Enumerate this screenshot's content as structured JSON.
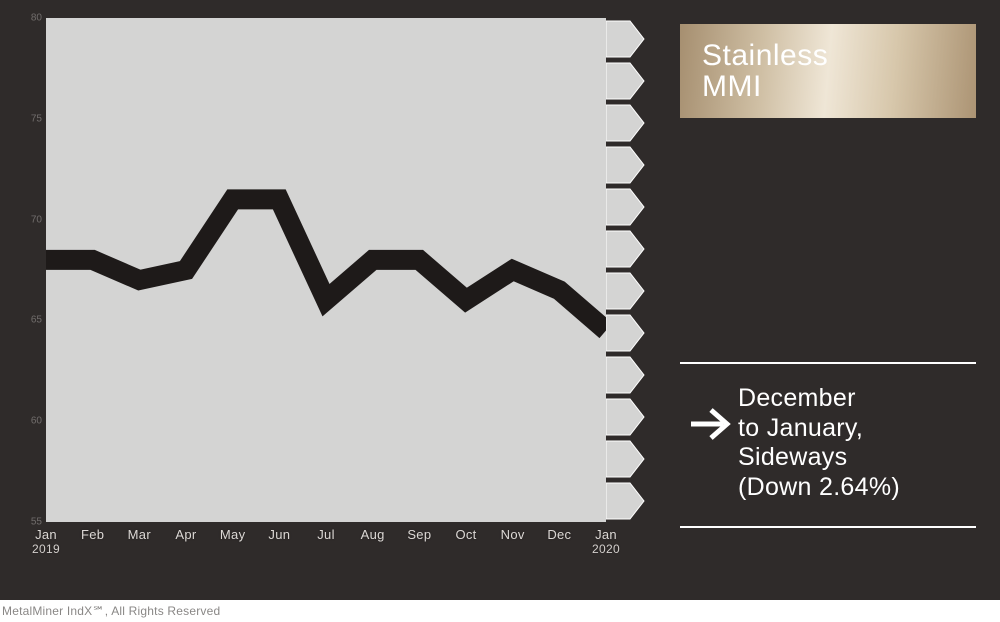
{
  "badge": {
    "line1": "Stainless",
    "line2": "MMI",
    "gradient_stops": [
      "#a68f70",
      "#cfbfa4",
      "#efe6d6",
      "#d7c7ab",
      "#ac9474"
    ],
    "text_color": "#ffffff",
    "fontsize": 30
  },
  "summary": {
    "line1": "December",
    "line2": "to January,",
    "line3": "Sideways",
    "line4": "(Down 2.64%)",
    "arrow_direction": "right",
    "arrow_color": "#ffffff",
    "border_color": "#ffffff",
    "fontsize": 25
  },
  "chart": {
    "type": "line",
    "background_color": "#d4d4d3",
    "panel_color": "#2f2b2a",
    "decor_arrow_fill": "#d4d4d3",
    "decor_arrow_stroke": "#ffffff",
    "decor_arrow_rows": 12,
    "line_color": "#1e1a19",
    "line_width": 20,
    "x_labels": [
      {
        "month": "Jan",
        "year": "2019"
      },
      {
        "month": "Feb",
        "year": ""
      },
      {
        "month": "Mar",
        "year": ""
      },
      {
        "month": "Apr",
        "year": ""
      },
      {
        "month": "May",
        "year": ""
      },
      {
        "month": "Jun",
        "year": ""
      },
      {
        "month": "Jul",
        "year": ""
      },
      {
        "month": "Aug",
        "year": ""
      },
      {
        "month": "Sep",
        "year": ""
      },
      {
        "month": "Oct",
        "year": ""
      },
      {
        "month": "Nov",
        "year": ""
      },
      {
        "month": "Dec",
        "year": ""
      },
      {
        "month": "Jan",
        "year": "2020"
      }
    ],
    "x_label_color": "#dcd8d5",
    "x_label_fontsize": 13,
    "ylim": [
      55,
      80
    ],
    "ytick_step": 5,
    "values": [
      68.0,
      68.0,
      67.0,
      67.5,
      71.0,
      71.0,
      66.0,
      68.0,
      68.0,
      66.0,
      67.5,
      66.5,
      64.5
    ]
  },
  "source_line": "MetalMiner IndX℠, All Rights Reserved"
}
